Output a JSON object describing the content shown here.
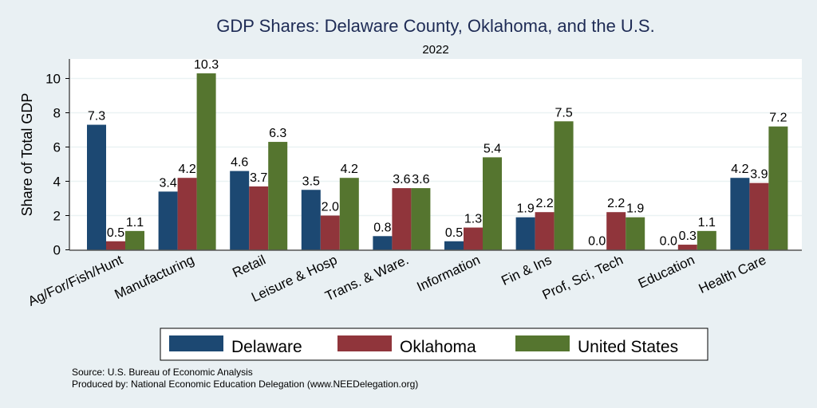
{
  "chart_data": {
    "type": "bar",
    "title": "GDP Shares: Delaware County, Oklahoma, and the U.S.",
    "subtitle": "2022",
    "xlabel": "",
    "ylabel": "Share of Total GDP",
    "ylim": [
      0,
      11
    ],
    "yticks": [
      0,
      2,
      4,
      6,
      8,
      10
    ],
    "grid": true,
    "legend_position": "bottom",
    "categories": [
      "Ag/For/Fish/Hunt",
      "Manufacturing",
      "Retail",
      "Leisure & Hosp",
      "Trans. & Ware.",
      "Information",
      "Fin & Ins",
      "Prof, Sci, Tech",
      "Education",
      "Health Care"
    ],
    "series": [
      {
        "name": "Delaware",
        "color": "#1c4872",
        "values": [
          7.3,
          3.4,
          4.6,
          3.5,
          0.8,
          0.5,
          1.9,
          0.0,
          0.0,
          4.2
        ]
      },
      {
        "name": "Oklahoma",
        "color": "#90353b",
        "values": [
          0.5,
          4.2,
          3.7,
          2.0,
          3.6,
          1.3,
          2.2,
          2.2,
          0.3,
          3.9
        ]
      },
      {
        "name": "United States",
        "color": "#55752f",
        "values": [
          1.1,
          10.3,
          6.3,
          4.2,
          3.6,
          5.4,
          7.5,
          1.9,
          1.1,
          7.2
        ]
      }
    ],
    "notes": [
      "Source: U.S. Bureau of Economic Analysis",
      "Produced by: National Economic Education Delegation (www.NEEDelegation.org)"
    ]
  }
}
